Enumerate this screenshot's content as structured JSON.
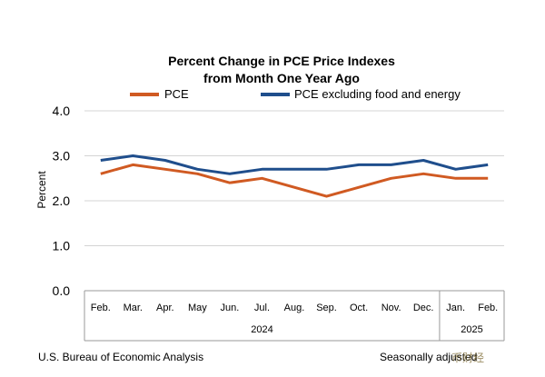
{
  "chart_data": {
    "type": "line",
    "title": [
      "Percent Change in PCE Price Indexes",
      "from Month One Year Ago"
    ],
    "ylabel": "Percent",
    "ylim": [
      0,
      4
    ],
    "yticks": [
      "0.0",
      "1.0",
      "2.0",
      "3.0",
      "4.0"
    ],
    "categories": [
      "Feb.",
      "Mar.",
      "Apr.",
      "May",
      "Jun.",
      "Jul.",
      "Aug.",
      "Sep.",
      "Oct.",
      "Nov.",
      "Dec.",
      "Jan.",
      "Feb."
    ],
    "year_groups": [
      {
        "label": "2024",
        "from": 0,
        "to": 10
      },
      {
        "label": "2025",
        "from": 11,
        "to": 12
      }
    ],
    "series": [
      {
        "name": "PCE",
        "color": "#d05a22",
        "values": [
          2.6,
          2.8,
          2.7,
          2.6,
          2.4,
          2.5,
          2.3,
          2.1,
          2.3,
          2.5,
          2.6,
          2.5,
          2.5
        ]
      },
      {
        "name": "PCE excluding food and energy",
        "color": "#1f4e8c",
        "values": [
          2.9,
          3.0,
          2.9,
          2.7,
          2.6,
          2.7,
          2.7,
          2.7,
          2.8,
          2.8,
          2.9,
          2.7,
          2.8
        ]
      }
    ],
    "grid": true,
    "legend": "top"
  },
  "footer": {
    "source": "U.S. Bureau of Economic Analysis",
    "note": "Seasonally adjusted"
  },
  "watermark": "币财经"
}
